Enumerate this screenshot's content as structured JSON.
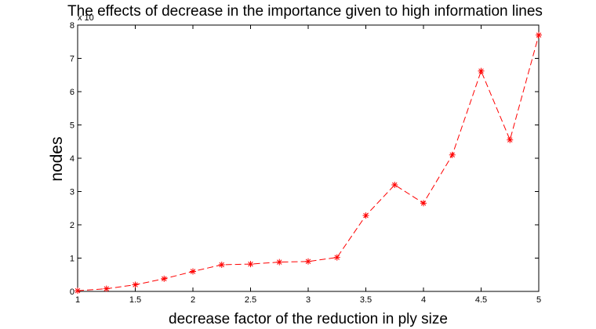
{
  "chart_data": {
    "type": "line",
    "title": "The effects of decrease in the importance given to high information lines",
    "xlabel": "decrease factor of the reduction in ply size",
    "ylabel": "nodes",
    "y_exponent_label": "x 10",
    "xlim": [
      1,
      5
    ],
    "ylim": [
      0,
      8
    ],
    "x_ticks": [
      "1",
      "1.5",
      "2",
      "2.5",
      "3",
      "3.5",
      "4",
      "4.5",
      "5"
    ],
    "y_ticks": [
      "0",
      "1",
      "2",
      "3",
      "4",
      "5",
      "6",
      "7",
      "8"
    ],
    "grid": false,
    "series": [
      {
        "color": "#ff0000",
        "line_style": "dashed",
        "marker": "asterisk",
        "x": [
          1,
          1.25,
          1.5,
          1.75,
          2,
          2.25,
          2.5,
          2.75,
          3,
          3.25,
          3.5,
          3.75,
          4,
          4.25,
          4.5,
          4.75,
          5
        ],
        "y": [
          0.02,
          0.08,
          0.2,
          0.38,
          0.6,
          0.8,
          0.82,
          0.88,
          0.9,
          1.02,
          2.28,
          3.2,
          2.65,
          4.1,
          6.62,
          4.55,
          7.7
        ]
      }
    ]
  }
}
